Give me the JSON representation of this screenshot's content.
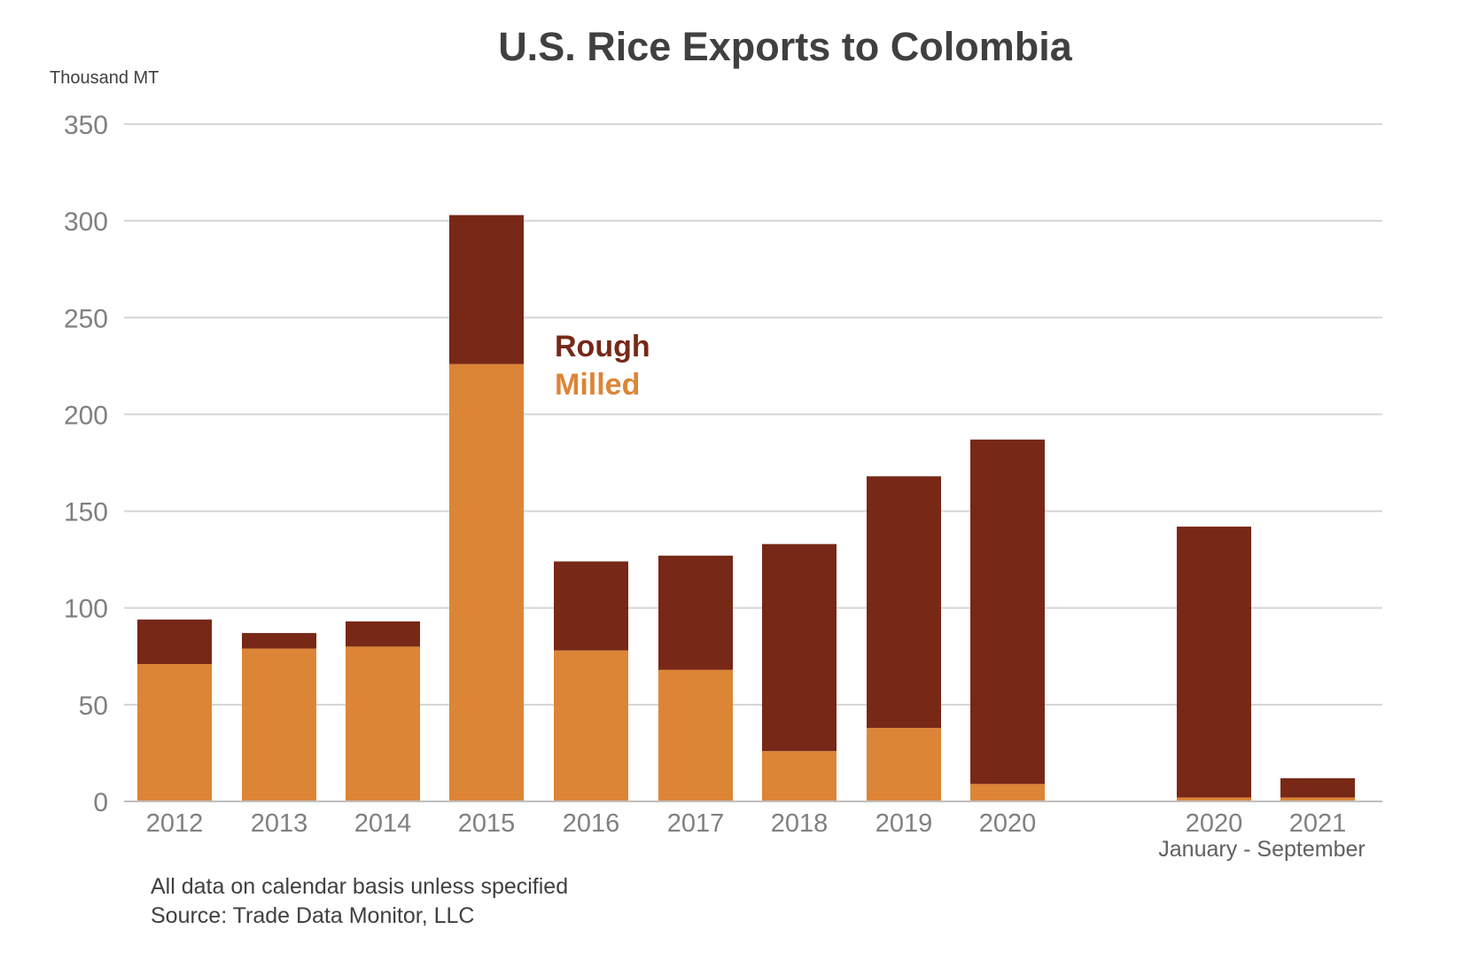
{
  "chart_data": {
    "type": "bar",
    "stacked": true,
    "title": "U.S. Rice Exports to Colombia",
    "ylabel": "Thousand MT",
    "xlabel": "",
    "ylim": [
      0,
      350
    ],
    "yticks": [
      0,
      50,
      100,
      150,
      200,
      250,
      300,
      350
    ],
    "grid": true,
    "categories": [
      "2012",
      "2013",
      "2014",
      "2015",
      "2016",
      "2017",
      "2018",
      "2019",
      "2020",
      "2020",
      "2021"
    ],
    "category_group_label": "January - September",
    "series": [
      {
        "name": "Milled",
        "color": "#DC8537",
        "values": [
          71,
          79,
          80,
          226,
          78,
          68,
          26,
          38,
          9,
          2,
          2
        ]
      },
      {
        "name": "Rough",
        "color": "#772817",
        "values": [
          23,
          8,
          13,
          77,
          46,
          59,
          107,
          130,
          178,
          140,
          10
        ]
      }
    ],
    "legend_placement": "inside, right of 2015 bar"
  },
  "notes": [
    "All data on calendar basis unless specified",
    "Source: Trade Data Monitor, LLC"
  ],
  "colors": {
    "grid": "#D5D5D5",
    "axis": "#BFBFBF",
    "tick_text": "#808080",
    "title": "#404040"
  }
}
